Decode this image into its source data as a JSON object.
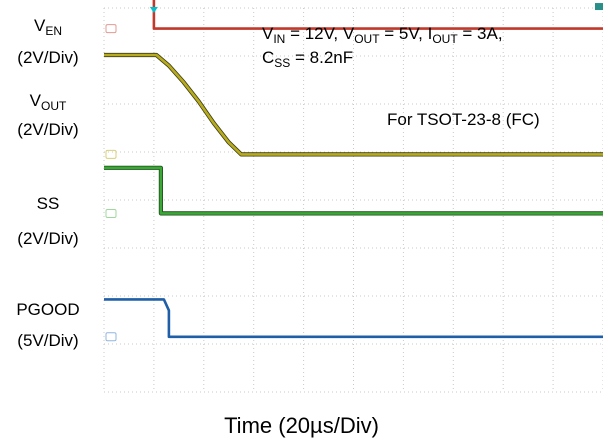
{
  "chart_data": {
    "type": "line",
    "title": "",
    "xlabel": "Time (20µs/Div)",
    "x_divisions": 10,
    "conditions_line1_parts": [
      "V",
      "IN",
      " = 12V, V",
      "OUT",
      " = 5V, I",
      "OUT",
      " = 3A,"
    ],
    "conditions_line2_parts": [
      "C",
      "SS",
      " = 8.2nF"
    ],
    "package_note": "For TSOT-23-8 (FC)",
    "series": [
      {
        "name_main": "V",
        "name_sub": "EN",
        "scale": "(2V/Div)",
        "color": "#c0392b",
        "marker_color": "#e39a92",
        "points": [
          [
            0,
            8.45
          ],
          [
            1.0,
            8.45
          ],
          [
            1.0,
            7.57
          ],
          [
            10,
            7.57
          ]
        ],
        "ground_marker": 7.57
      },
      {
        "name_main": "V",
        "name_sub": "OUT",
        "scale": "(2V/Div)",
        "color": "#b8ac1c",
        "outline_color": "#3a3a1c",
        "marker_color": "#d8d07a",
        "points": [
          [
            0,
            7.02
          ],
          [
            1.05,
            7.02
          ],
          [
            1.3,
            6.8
          ],
          [
            1.6,
            6.45
          ],
          [
            1.9,
            6.05
          ],
          [
            2.2,
            5.6
          ],
          [
            2.5,
            5.2
          ],
          [
            2.75,
            4.95
          ],
          [
            10,
            4.95
          ]
        ],
        "ground_marker": 4.95
      },
      {
        "name_main": "SS",
        "name_sub": "",
        "scale": "(2V/Div)",
        "color": "#3aa835",
        "outline_color": "#1e4a1c",
        "marker_color": "#a0d89c",
        "points": [
          [
            0,
            4.67
          ],
          [
            1.14,
            4.67
          ],
          [
            1.14,
            3.72
          ],
          [
            10,
            3.72
          ]
        ],
        "ground_marker": 3.72
      },
      {
        "name_main": "PGOOD",
        "name_sub": "",
        "scale": "(5V/Div)",
        "color": "#1f5fa8",
        "marker_color": "#92b6de",
        "points": [
          [
            0,
            1.93
          ],
          [
            1.2,
            1.93
          ],
          [
            1.3,
            1.7
          ],
          [
            1.3,
            1.15
          ],
          [
            10,
            1.15
          ]
        ],
        "ground_marker": 1.15
      }
    ],
    "trigger_marker_color": "#00c0d0",
    "trigger_x": 1.0,
    "grid": true
  }
}
